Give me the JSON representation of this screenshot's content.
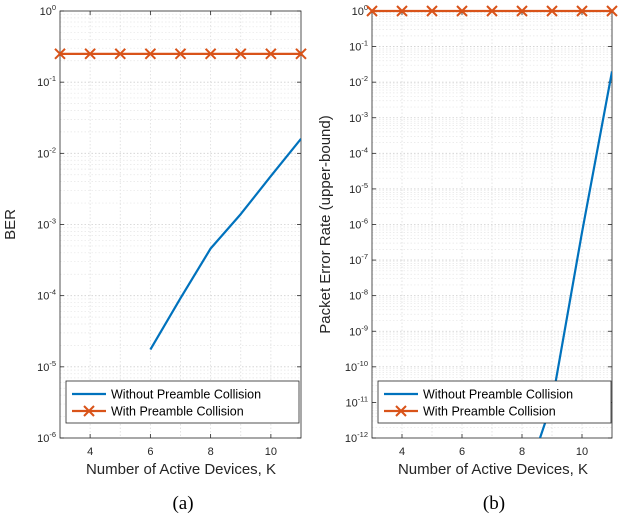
{
  "chart_data": [
    {
      "type": "line",
      "caption": "(a)",
      "xlabel": "Number of Active Devices, K",
      "ylabel": "BER",
      "xlim": [
        3,
        11
      ],
      "xticks": [
        4,
        6,
        8,
        10
      ],
      "ylim_log10": [
        -6,
        0
      ],
      "yscale": "log",
      "yticks": [
        "10^-6",
        "10^-5",
        "10^-4",
        "10^-3",
        "10^-2",
        "10^-1",
        "10^0"
      ],
      "grid": true,
      "legend_position": "bottom",
      "series": [
        {
          "name": "Without Preamble Collision",
          "color": "#0072bd",
          "marker": "none",
          "x": [
            6,
            7,
            8,
            9,
            10,
            11
          ],
          "y": [
            1.75e-05,
            9.2e-05,
            0.00046,
            0.0014,
            0.0048,
            0.016
          ]
        },
        {
          "name": "With Preamble Collision",
          "color": "#d95319",
          "marker": "x",
          "x": [
            3,
            4,
            5,
            6,
            7,
            8,
            9,
            10,
            11
          ],
          "y": [
            0.25,
            0.25,
            0.25,
            0.25,
            0.25,
            0.25,
            0.25,
            0.25,
            0.25
          ]
        }
      ]
    },
    {
      "type": "line",
      "caption": "(b)",
      "xlabel": "Number of Active Devices, K",
      "ylabel": "Packet Error Rate (upper-bound)",
      "xlim": [
        3,
        11
      ],
      "xticks": [
        4,
        6,
        8,
        10
      ],
      "ylim_log10": [
        -12,
        0
      ],
      "yscale": "log",
      "yticks": [
        "10^-12",
        "10^-10",
        "10^-8",
        "10^-6",
        "10^-4",
        "10^-2",
        "10^0"
      ],
      "grid": true,
      "legend_position": "bottom",
      "series": [
        {
          "name": "Without Preamble Collision",
          "color": "#0072bd",
          "marker": "none",
          "x": [
            8.6,
            9,
            10,
            11
          ],
          "y": [
            1e-12,
            1e-11,
            6e-07,
            0.02
          ]
        },
        {
          "name": "With Preamble Collision",
          "color": "#d95319",
          "marker": "x",
          "x": [
            3,
            4,
            5,
            6,
            7,
            8,
            9,
            10,
            11
          ],
          "y": [
            1,
            1,
            1,
            1,
            1,
            1,
            1,
            1,
            1
          ]
        }
      ]
    }
  ]
}
